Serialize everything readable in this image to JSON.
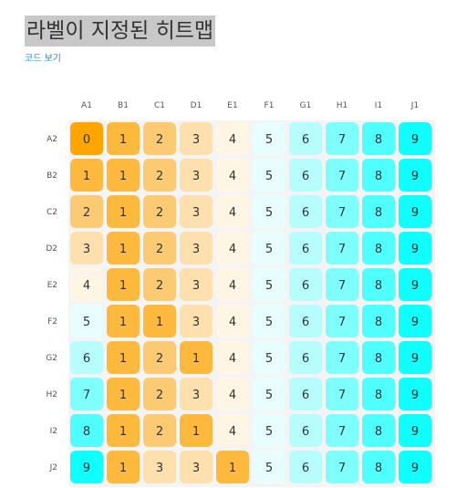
{
  "page": {
    "title": "라벨이 지정된 히트맵",
    "code_link": "코드 보기"
  },
  "chart_data": {
    "type": "heatmap",
    "title": "라벨이 지정된 히트맵",
    "x_categories": [
      "A1",
      "B1",
      "C1",
      "D1",
      "E1",
      "F1",
      "G1",
      "H1",
      "I1",
      "J1"
    ],
    "y_categories": [
      "A2",
      "B2",
      "C2",
      "D2",
      "E2",
      "F2",
      "G2",
      "H2",
      "I2",
      "J2"
    ],
    "values": [
      [
        0,
        1,
        2,
        3,
        4,
        5,
        6,
        7,
        8,
        9
      ],
      [
        1,
        1,
        2,
        3,
        4,
        5,
        6,
        7,
        8,
        9
      ],
      [
        2,
        1,
        2,
        3,
        4,
        5,
        6,
        7,
        8,
        9
      ],
      [
        3,
        1,
        2,
        3,
        4,
        5,
        6,
        7,
        8,
        9
      ],
      [
        4,
        1,
        2,
        3,
        4,
        5,
        6,
        7,
        8,
        9
      ],
      [
        5,
        1,
        1,
        3,
        4,
        5,
        6,
        7,
        8,
        9
      ],
      [
        6,
        1,
        2,
        1,
        4,
        5,
        6,
        7,
        8,
        9
      ],
      [
        7,
        1,
        2,
        3,
        4,
        5,
        6,
        7,
        8,
        9
      ],
      [
        8,
        1,
        2,
        1,
        4,
        5,
        6,
        7,
        8,
        9
      ],
      [
        9,
        1,
        3,
        3,
        1,
        5,
        6,
        7,
        8,
        9
      ]
    ],
    "color_scale": {
      "0": "#FFA500",
      "1": "#FDB93D",
      "2": "#FDCA74",
      "3": "#FEE0AE",
      "4": "#FEF5E4",
      "5": "#E8FEFE",
      "6": "#B8FDFD",
      "7": "#7FFEFE",
      "8": "#50FEFE",
      "9": "#10FEFE"
    },
    "x_axis_position": "top",
    "legend": "none",
    "cell_style": "rounded"
  }
}
